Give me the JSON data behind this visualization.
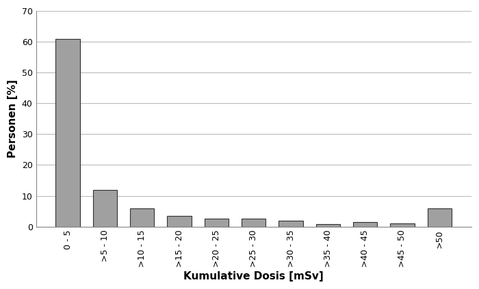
{
  "categories": [
    "0 - 5",
    ">5 - 10",
    ">10 - 15",
    ">15 - 20",
    ">20 - 25",
    ">25 - 30",
    ">30 - 35",
    ">35 - 40",
    ">40 - 45",
    ">45 - 50",
    ">50"
  ],
  "values": [
    61.0,
    12.0,
    6.0,
    3.5,
    2.5,
    2.5,
    2.0,
    0.8,
    1.5,
    1.0,
    6.0
  ],
  "bar_color": "#a0a0a0",
  "bar_edgecolor": "#303030",
  "xlabel": "Kumulative Dosis [mSv]",
  "ylabel": "Personen [%]",
  "ylim": [
    0,
    70
  ],
  "yticks": [
    0,
    10,
    20,
    30,
    40,
    50,
    60,
    70
  ],
  "background_color": "#ffffff",
  "grid_color": "#bbbbbb",
  "xlabel_fontsize": 11,
  "ylabel_fontsize": 11,
  "tick_fontsize": 9,
  "bar_width": 0.65
}
